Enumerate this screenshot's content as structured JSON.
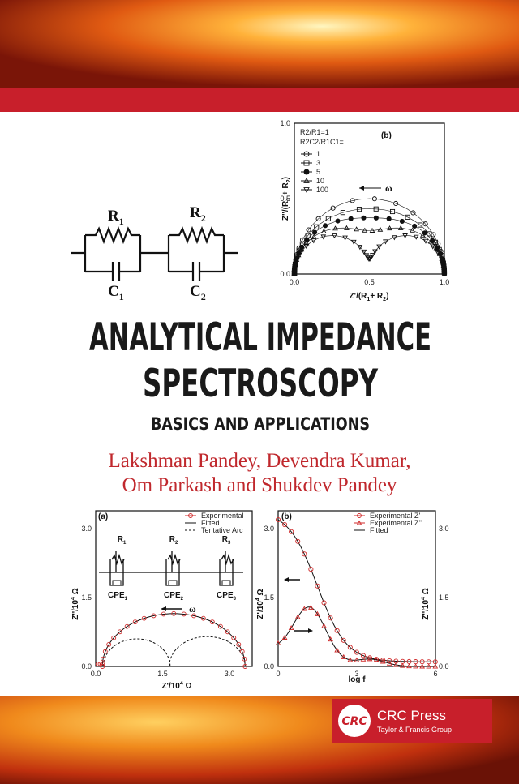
{
  "cover": {
    "title_lines": [
      "ANALYTICAL IMPEDANCE",
      "SPECTROSCOPY"
    ],
    "subtitle": "BASICS AND APPLICATIONS",
    "author_lines": [
      "Lakshman Pandey, Devendra Kumar,",
      "Om Parkash and Shukdev Pandey"
    ]
  },
  "circuit": {
    "r1": {
      "main": "R",
      "sub": "1"
    },
    "r2": {
      "main": "R",
      "sub": "2"
    },
    "c1": {
      "main": "C",
      "sub": "1"
    },
    "c2": {
      "main": "C",
      "sub": "2"
    }
  },
  "figure_top": {
    "panel": "(b)",
    "legend_header": [
      "R2/R1=1",
      "R2C2/R1C1="
    ],
    "legend": [
      "1",
      "3",
      "5",
      "10",
      "100"
    ],
    "omega": "ω",
    "yticks": [
      "0.0",
      "0.5",
      "1.0"
    ],
    "xticks": [
      "0.0",
      "0.5",
      "1.0"
    ],
    "ylabel": {
      "main": "Z''/(R",
      "sub1": "1",
      "mid": " + R",
      "sub2": "2",
      "end": ")"
    },
    "xlabel": {
      "main": "Z'/(R",
      "sub1": "1",
      "mid": "+ R",
      "sub2": "2",
      "end": ")"
    }
  },
  "figure_left": {
    "panel": "(a)",
    "legend": [
      "Experimental",
      "Fitted",
      "Tentative Arc"
    ],
    "yticks": [
      "0.0",
      "1.5",
      "3.0"
    ],
    "xticks": [
      "0.0",
      "1.5",
      "3.0"
    ],
    "circuit": [
      {
        "main": "R",
        "sub": "1"
      },
      {
        "main": "R",
        "sub": "2"
      },
      {
        "main": "R",
        "sub": "3"
      },
      {
        "main": "CPE",
        "sub": "1"
      },
      {
        "main": "CPE",
        "sub": "2"
      },
      {
        "main": "CPE",
        "sub": "3"
      }
    ],
    "omega": "ω",
    "ylabel": {
      "main": "Z''/10",
      "sup": "4",
      "unit": " Ω"
    },
    "xlabel": {
      "main": "Z'/10",
      "sup": "4",
      "unit": " Ω"
    }
  },
  "figure_right": {
    "panel": "(b)",
    "legend": [
      "Experimental Z'",
      "Experimental Z''",
      "Fitted"
    ],
    "xticks": [
      "0",
      "3",
      "6"
    ],
    "yticks": [
      "0.0",
      "1.5",
      "3.0"
    ],
    "y2ticks": [
      "0.0",
      "1.5",
      "3.0"
    ],
    "ylabel": {
      "main": "Z'/10",
      "sup": "4",
      "unit": " Ω"
    },
    "y2label": {
      "main": "Z''/10",
      "sup": "4",
      "unit": " Ω"
    },
    "xlabel": "log f"
  },
  "publisher": {
    "logo": "CRC",
    "name": "CRC Press",
    "tagline": "Taylor & Francis Group"
  }
}
